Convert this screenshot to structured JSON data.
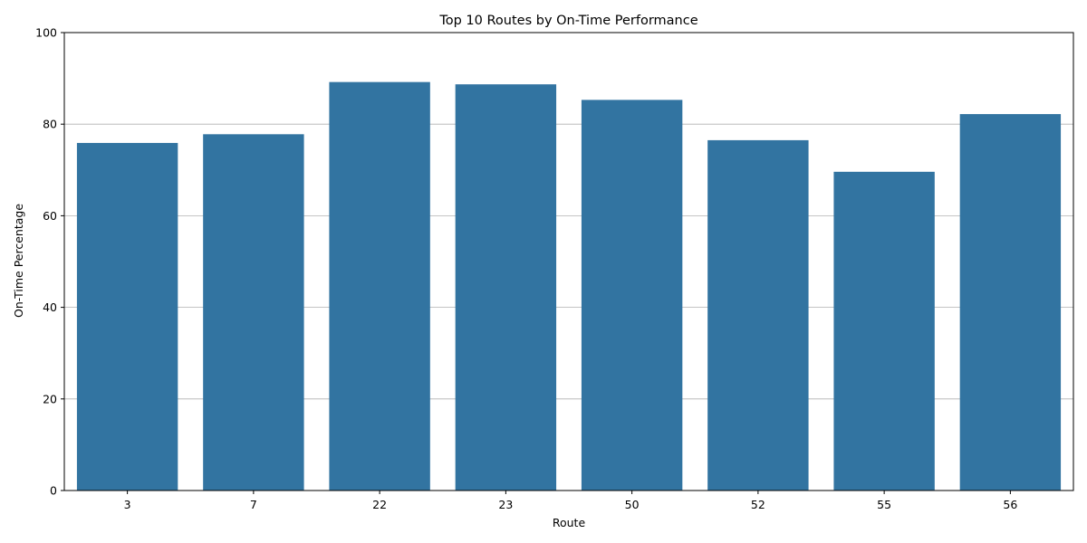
{
  "chart_data": {
    "type": "bar",
    "title": "Top 10 Routes by On-Time Performance",
    "xlabel": "Route",
    "ylabel": "On-Time Percentage",
    "categories": [
      "3",
      "7",
      "22",
      "23",
      "50",
      "52",
      "55",
      "56"
    ],
    "values": [
      75.9,
      77.8,
      89.2,
      88.7,
      85.3,
      76.5,
      69.6,
      82.2
    ],
    "ylim": [
      0,
      100
    ],
    "yticks": [
      0,
      20,
      40,
      60,
      80,
      100
    ],
    "grid": "y",
    "legend": "none",
    "colors": {
      "bar": "#3274a1",
      "grid": "#b0b0b0",
      "axis": "#000000"
    }
  }
}
